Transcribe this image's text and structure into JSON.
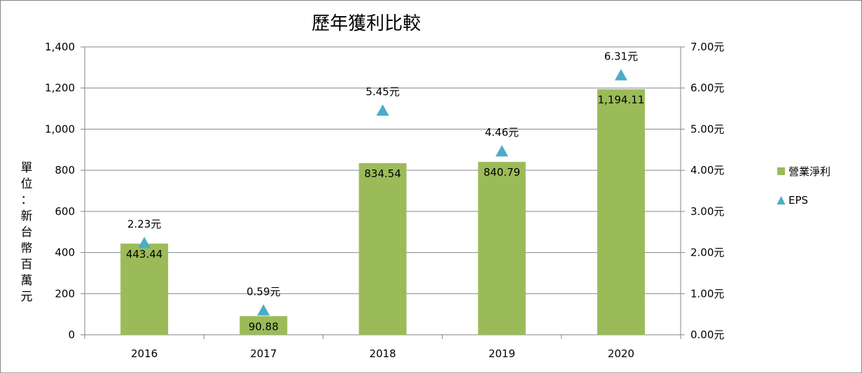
{
  "chart_data": {
    "type": "bar",
    "title": "歷年獲利比較",
    "ylabel": "單位：新台幣百萬元",
    "categories": [
      "2016",
      "2017",
      "2018",
      "2019",
      "2020"
    ],
    "series": [
      {
        "name": "營業淨利",
        "type": "bar",
        "axis": "left",
        "values": [
          443.44,
          90.88,
          834.54,
          840.79,
          1194.11
        ],
        "data_labels": [
          "443.44",
          "90.88",
          "834.54",
          "840.79",
          "1,194.11"
        ],
        "color": "#9BBB59"
      },
      {
        "name": "EPS",
        "type": "scatter",
        "marker": "triangle",
        "axis": "right",
        "values": [
          2.23,
          0.59,
          5.45,
          4.46,
          6.31
        ],
        "data_labels": [
          "2.23元",
          "0.59元",
          "5.45元",
          "4.46元",
          "6.31元"
        ],
        "color": "#4BACC6"
      }
    ],
    "ylim": [
      0,
      1400
    ],
    "yticks": [
      "0",
      "200",
      "400",
      "600",
      "800",
      "1,000",
      "1,200",
      "1,400"
    ],
    "y2lim": [
      0,
      7
    ],
    "y2ticks": [
      "0.00元",
      "1.00元",
      "2.00元",
      "3.00元",
      "4.00元",
      "5.00元",
      "6.00元",
      "7.00元"
    ],
    "grid": true,
    "legend_position": "right"
  }
}
